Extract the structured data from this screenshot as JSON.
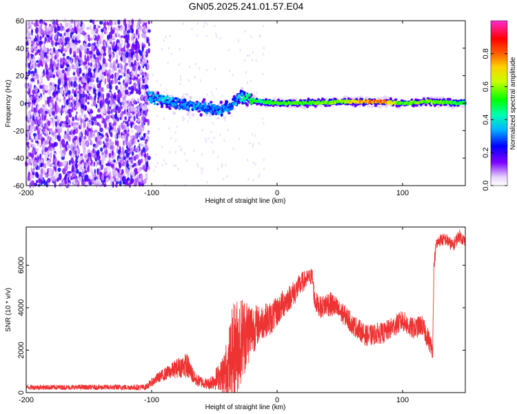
{
  "title": "GN05.2025.241.01.57.E04",
  "chart_data": [
    {
      "type": "heatmap",
      "name": "spectrogram",
      "xlabel": "Height of straight line (km)",
      "ylabel": "Frequency (Hz)",
      "xlim": [
        -200,
        150
      ],
      "ylim": [
        -60,
        60
      ],
      "xticks": [
        -200,
        -100,
        0,
        100
      ],
      "xtick_labels": [
        "-200",
        "-100",
        "0",
        "100"
      ],
      "yticks": [
        -60,
        -40,
        -20,
        0,
        20,
        40,
        60
      ],
      "ytick_labels": [
        "-60",
        "-40",
        "-20",
        "0",
        "20",
        "40",
        "60"
      ],
      "colorbar": {
        "label": "Normalized spectral amplitude",
        "range": [
          0,
          1
        ],
        "ticks": [
          0.0,
          0.2,
          0.4,
          0.6,
          0.8
        ],
        "tick_labels": [
          "0.0",
          "0.2",
          "0.4",
          "0.6",
          "0.8"
        ]
      },
      "noise_region_x": [
        -200,
        -102
      ],
      "signal_track": {
        "x": [
          -103,
          -95,
          -85,
          -75,
          -65,
          -55,
          -45,
          -38,
          -32,
          -28,
          -24,
          -20,
          -10,
          0,
          20,
          50,
          80,
          100,
          120,
          150
        ],
        "y": [
          5,
          3,
          1,
          -1,
          -2,
          -4,
          -5,
          -3,
          2,
          5,
          4,
          2,
          1,
          0,
          0,
          1,
          1,
          0,
          1,
          0
        ],
        "amplitude": [
          0.35,
          0.4,
          0.35,
          0.3,
          0.35,
          0.3,
          0.35,
          0.3,
          0.35,
          0.4,
          0.45,
          0.5,
          0.5,
          0.55,
          0.55,
          0.6,
          0.85,
          0.55,
          0.6,
          0.5
        ]
      }
    },
    {
      "type": "line",
      "name": "snr",
      "xlabel": "Height of straight line (km)",
      "ylabel": "SNR (10 * v/v)",
      "xlim": [
        -200,
        150
      ],
      "ylim": [
        0,
        7800
      ],
      "xticks": [
        -200,
        -100,
        0,
        100
      ],
      "xtick_labels": [
        "-200",
        "-100",
        "0",
        "100"
      ],
      "yticks": [
        0,
        2000,
        4000,
        6000
      ],
      "ytick_labels": [
        "0",
        "2000",
        "4000",
        "6000"
      ],
      "color": "#ee3333",
      "series": {
        "x": [
          -200,
          -150,
          -105,
          -95,
          -85,
          -78,
          -72,
          -65,
          -55,
          -45,
          -40,
          -35,
          -30,
          -25,
          -20,
          -15,
          -10,
          -5,
          0,
          5,
          10,
          15,
          20,
          25,
          28,
          30,
          35,
          40,
          45,
          50,
          55,
          60,
          65,
          70,
          75,
          80,
          85,
          90,
          95,
          100,
          105,
          110,
          115,
          120,
          124,
          125,
          127,
          130,
          135,
          140,
          145,
          150
        ],
        "y": [
          250,
          250,
          250,
          700,
          1000,
          1200,
          1300,
          600,
          400,
          800,
          1000,
          1800,
          2400,
          2800,
          3000,
          3200,
          3400,
          3500,
          3800,
          4200,
          4500,
          4800,
          5200,
          5400,
          5500,
          4300,
          4000,
          4200,
          4100,
          3800,
          3600,
          3200,
          3000,
          2700,
          2700,
          2800,
          2800,
          3000,
          3200,
          3400,
          3100,
          3000,
          3200,
          2600,
          2000,
          6000,
          7000,
          7200,
          7200,
          6900,
          7400,
          7100
        ],
        "noise_amp": [
          120,
          120,
          140,
          250,
          350,
          500,
          600,
          300,
          250,
          700,
          1500,
          2500,
          2200,
          1800,
          1300,
          900,
          800,
          800,
          700,
          700,
          600,
          600,
          500,
          400,
          400,
          500,
          500,
          600,
          600,
          500,
          500,
          500,
          500,
          500,
          500,
          500,
          500,
          500,
          500,
          500,
          500,
          500,
          500,
          500,
          400,
          300,
          300,
          300,
          300,
          300,
          300,
          300
        ]
      }
    }
  ]
}
